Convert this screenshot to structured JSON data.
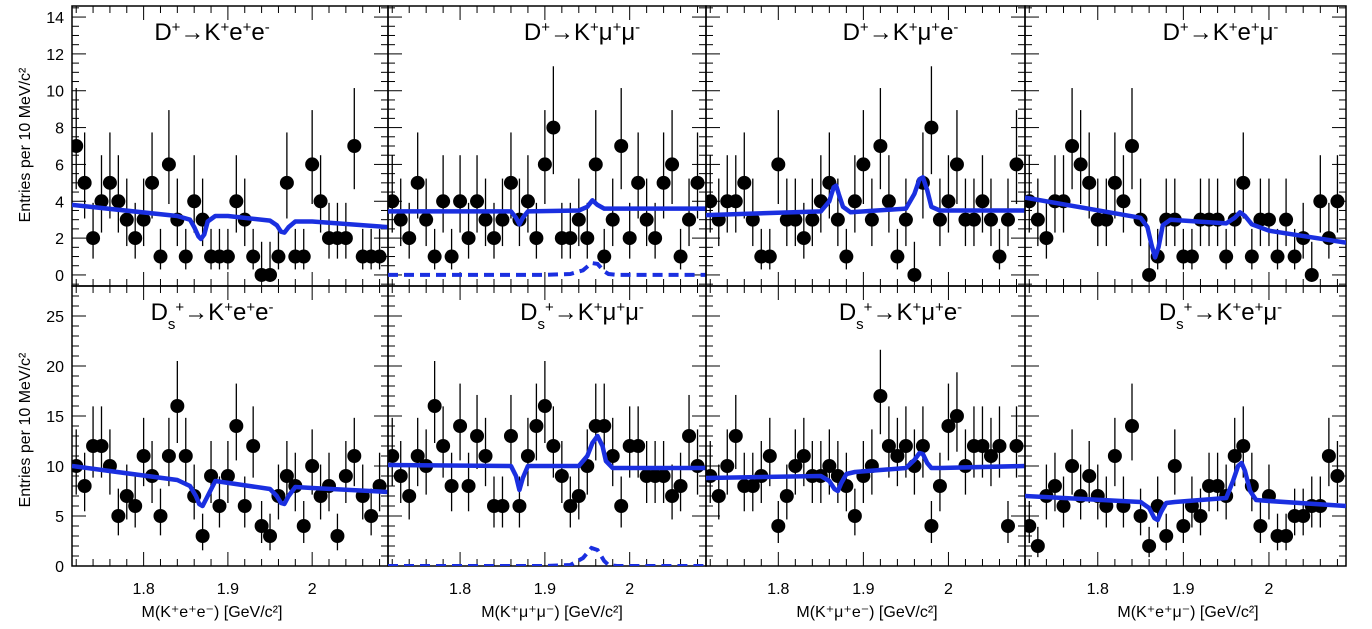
{
  "figure": {
    "ylabel": "Entries per 10 MeV/c²",
    "xlabels": [
      "M(K⁺e⁺e⁻) [GeV/c²]",
      "M(K⁺μ⁺μ⁻) [GeV/c²]",
      "M(K⁺μ⁺e⁻) [GeV/c²]",
      "M(K⁺e⁺μ⁻) [GeV/c²]"
    ],
    "xticks": [
      1.8,
      1.9,
      2.0
    ],
    "xtick_labels": [
      "1.8",
      "1.9",
      "2"
    ],
    "xlim": [
      1.715,
      2.09
    ],
    "rows": [
      {
        "ylim": [
          -0.6,
          14.6
        ],
        "yticks": [
          0,
          2,
          4,
          6,
          8,
          10,
          12,
          14
        ]
      },
      {
        "ylim": [
          0,
          28
        ],
        "yticks": [
          0,
          5,
          10,
          15,
          20,
          25
        ]
      }
    ],
    "colors": {
      "fit": "#1a2fe0",
      "data": "#000000"
    }
  },
  "chart_data": [
    {
      "type": "scatter",
      "title": "D⁺→K⁺e⁺e⁻",
      "row": 0,
      "col": 0,
      "x": [
        1.72,
        1.73,
        1.74,
        1.75,
        1.76,
        1.77,
        1.78,
        1.79,
        1.8,
        1.81,
        1.82,
        1.83,
        1.84,
        1.85,
        1.86,
        1.87,
        1.88,
        1.89,
        1.9,
        1.91,
        1.92,
        1.93,
        1.94,
        1.95,
        1.96,
        1.97,
        1.98,
        1.99,
        2.0,
        2.01,
        2.02,
        2.03,
        2.04,
        2.05,
        2.06,
        2.07,
        2.08
      ],
      "y": [
        7,
        5,
        2,
        4,
        5,
        4,
        3,
        2,
        3,
        5,
        1,
        6,
        3,
        1,
        4,
        3,
        1,
        1,
        1,
        4,
        3,
        1,
        0,
        0,
        1,
        5,
        1,
        1,
        6,
        4,
        2,
        2,
        2,
        7,
        1,
        1,
        1
      ],
      "fit": {
        "x": [
          1.715,
          1.84,
          1.855,
          1.86,
          1.865,
          1.868,
          1.872,
          1.876,
          1.885,
          1.9,
          1.95,
          1.958,
          1.963,
          1.967,
          1.972,
          1.98,
          2.0,
          2.09
        ],
        "y": [
          3.8,
          3.2,
          3.0,
          2.6,
          2.1,
          1.95,
          2.2,
          2.9,
          3.2,
          3.2,
          2.95,
          2.7,
          2.35,
          2.3,
          2.6,
          2.9,
          2.9,
          2.6
        ]
      }
    },
    {
      "type": "scatter",
      "title": "D⁺→K⁺μ⁺μ⁻",
      "row": 0,
      "col": 1,
      "x": [
        1.72,
        1.73,
        1.74,
        1.75,
        1.76,
        1.77,
        1.78,
        1.79,
        1.8,
        1.81,
        1.82,
        1.83,
        1.84,
        1.85,
        1.86,
        1.87,
        1.88,
        1.89,
        1.9,
        1.91,
        1.92,
        1.93,
        1.94,
        1.95,
        1.96,
        1.97,
        1.98,
        1.99,
        2.0,
        2.01,
        2.02,
        2.03,
        2.04,
        2.05,
        2.06,
        2.07,
        2.08
      ],
      "y": [
        4,
        3,
        2,
        5,
        3,
        1,
        4,
        1,
        4,
        2,
        4,
        3,
        2,
        3,
        5,
        3,
        4,
        2,
        6,
        8,
        2,
        2,
        3,
        2,
        6,
        1,
        3,
        7,
        2,
        5,
        3,
        2,
        5,
        6,
        1,
        3,
        5
      ],
      "fit": {
        "x": [
          1.715,
          1.86,
          1.866,
          1.87,
          1.874,
          1.88,
          1.94,
          1.95,
          1.956,
          1.962,
          1.97,
          2.0,
          2.09
        ],
        "y": [
          3.45,
          3.45,
          3.1,
          2.75,
          3.1,
          3.45,
          3.5,
          3.7,
          4.05,
          3.8,
          3.6,
          3.6,
          3.6
        ]
      },
      "fit_dashed": {
        "x": [
          1.715,
          1.9,
          1.93,
          1.945,
          1.955,
          1.962,
          1.97,
          1.975,
          1.985,
          2.09
        ],
        "y": [
          0,
          0,
          0.05,
          0.25,
          0.65,
          0.6,
          0.2,
          0.05,
          0,
          0
        ]
      }
    },
    {
      "type": "scatter",
      "title": "D⁺→K⁺μ⁺e⁻",
      "row": 0,
      "col": 2,
      "x": [
        1.72,
        1.73,
        1.74,
        1.75,
        1.76,
        1.77,
        1.78,
        1.79,
        1.8,
        1.81,
        1.82,
        1.83,
        1.84,
        1.85,
        1.86,
        1.87,
        1.88,
        1.89,
        1.9,
        1.91,
        1.92,
        1.93,
        1.94,
        1.95,
        1.96,
        1.97,
        1.98,
        1.99,
        2.0,
        2.01,
        2.02,
        2.03,
        2.04,
        2.05,
        2.06,
        2.07,
        2.08
      ],
      "y": [
        4,
        3,
        4,
        4,
        5,
        3,
        1,
        1,
        6,
        3,
        3,
        2,
        3,
        4,
        5,
        3,
        1,
        4,
        6,
        3,
        7,
        4,
        1,
        3,
        0,
        5,
        8,
        3,
        4,
        6,
        3,
        3,
        4,
        3,
        1,
        3,
        6
      ],
      "fit": {
        "x": [
          1.715,
          1.85,
          1.86,
          1.865,
          1.868,
          1.871,
          1.876,
          1.885,
          1.95,
          1.96,
          1.966,
          1.97,
          1.975,
          1.98,
          1.99,
          2.09
        ],
        "y": [
          3.25,
          3.45,
          4.0,
          4.75,
          4.85,
          4.4,
          3.7,
          3.4,
          3.6,
          4.4,
          5.2,
          5.3,
          4.6,
          3.7,
          3.5,
          3.5
        ]
      }
    },
    {
      "type": "scatter",
      "title": "D⁺→K⁺e⁺μ⁻",
      "row": 0,
      "col": 3,
      "x": [
        1.72,
        1.73,
        1.74,
        1.75,
        1.76,
        1.77,
        1.78,
        1.79,
        1.8,
        1.81,
        1.82,
        1.83,
        1.84,
        1.85,
        1.86,
        1.87,
        1.88,
        1.89,
        1.9,
        1.91,
        1.92,
        1.93,
        1.94,
        1.95,
        1.96,
        1.97,
        1.98,
        1.99,
        2.0,
        2.01,
        2.02,
        2.03,
        2.04,
        2.05,
        2.06,
        2.07,
        2.08
      ],
      "y": [
        4,
        3,
        2,
        4,
        4,
        7,
        6,
        5,
        3,
        3,
        5,
        4,
        7,
        3,
        0,
        1,
        3,
        3,
        1,
        1,
        3,
        3,
        3,
        1,
        3,
        5,
        1,
        3,
        3,
        1,
        3,
        1,
        2,
        0,
        4,
        2,
        4
      ],
      "fit": {
        "x": [
          1.715,
          1.85,
          1.858,
          1.863,
          1.867,
          1.871,
          1.876,
          1.885,
          1.95,
          1.96,
          1.966,
          1.972,
          1.98,
          2.0,
          2.09
        ],
        "y": [
          4.2,
          3.1,
          2.6,
          1.6,
          0.95,
          1.5,
          2.7,
          3.0,
          2.8,
          3.1,
          3.4,
          3.2,
          2.75,
          2.4,
          1.75
        ]
      }
    },
    {
      "type": "scatter",
      "title": "Dₛ⁺→K⁺e⁺e⁻",
      "row": 1,
      "col": 0,
      "x": [
        1.72,
        1.73,
        1.74,
        1.75,
        1.76,
        1.77,
        1.78,
        1.79,
        1.8,
        1.81,
        1.82,
        1.83,
        1.84,
        1.85,
        1.86,
        1.87,
        1.88,
        1.89,
        1.9,
        1.91,
        1.92,
        1.93,
        1.94,
        1.95,
        1.96,
        1.97,
        1.98,
        1.99,
        2.0,
        2.01,
        2.02,
        2.03,
        2.04,
        2.05,
        2.06,
        2.07,
        2.08
      ],
      "y": [
        10,
        8,
        12,
        12,
        10,
        5,
        7,
        6,
        11,
        9,
        5,
        11,
        16,
        11,
        7,
        3,
        9,
        6,
        9,
        14,
        6,
        12,
        4,
        3,
        7,
        9,
        8,
        4,
        10,
        7,
        8,
        3,
        9,
        11,
        7,
        5,
        8
      ],
      "fit": {
        "x": [
          1.715,
          1.84,
          1.855,
          1.862,
          1.866,
          1.87,
          1.876,
          1.885,
          1.95,
          1.958,
          1.963,
          1.967,
          1.972,
          1.98,
          2.0,
          2.09
        ],
        "y": [
          10.0,
          8.6,
          8.0,
          7.0,
          6.2,
          6.0,
          7.0,
          8.5,
          7.7,
          7.0,
          6.3,
          6.2,
          7.0,
          7.9,
          7.8,
          7.4
        ]
      }
    },
    {
      "type": "scatter",
      "title": "Dₛ⁺→K⁺μ⁺μ⁻",
      "row": 1,
      "col": 1,
      "x": [
        1.72,
        1.73,
        1.74,
        1.75,
        1.76,
        1.77,
        1.78,
        1.79,
        1.8,
        1.81,
        1.82,
        1.83,
        1.84,
        1.85,
        1.86,
        1.87,
        1.88,
        1.89,
        1.9,
        1.91,
        1.92,
        1.93,
        1.94,
        1.95,
        1.96,
        1.97,
        1.98,
        1.99,
        2.0,
        2.01,
        2.02,
        2.03,
        2.04,
        2.05,
        2.06,
        2.07,
        2.08
      ],
      "y": [
        11,
        9,
        7,
        11,
        10,
        16,
        12,
        8,
        14,
        8,
        13,
        11,
        6,
        6,
        13,
        6,
        11,
        14,
        16,
        12,
        9,
        6,
        7,
        10,
        14,
        14,
        11,
        6,
        12,
        12,
        9,
        9,
        9,
        7,
        8,
        13,
        10
      ],
      "fit": {
        "x": [
          1.715,
          1.86,
          1.866,
          1.87,
          1.874,
          1.88,
          1.94,
          1.95,
          1.956,
          1.962,
          1.968,
          1.972,
          1.98,
          1.99,
          2.09
        ],
        "y": [
          10.1,
          10.0,
          9.0,
          7.6,
          8.8,
          10.0,
          10.0,
          11.0,
          12.3,
          13.0,
          12.0,
          10.5,
          9.8,
          9.8,
          9.8
        ]
      },
      "fit_dashed": {
        "x": [
          1.715,
          1.9,
          1.93,
          1.945,
          1.955,
          1.962,
          1.97,
          1.975,
          1.985,
          2.09
        ],
        "y": [
          0,
          0,
          0.1,
          0.8,
          1.8,
          1.6,
          0.5,
          0.1,
          0,
          0
        ]
      }
    },
    {
      "type": "scatter",
      "title": "Dₛ⁺→K⁺μ⁺e⁻",
      "row": 1,
      "col": 2,
      "x": [
        1.72,
        1.73,
        1.74,
        1.75,
        1.76,
        1.77,
        1.78,
        1.79,
        1.8,
        1.81,
        1.82,
        1.83,
        1.84,
        1.85,
        1.86,
        1.87,
        1.88,
        1.89,
        1.9,
        1.91,
        1.92,
        1.93,
        1.94,
        1.95,
        1.96,
        1.97,
        1.98,
        1.99,
        2.0,
        2.01,
        2.02,
        2.03,
        2.04,
        2.05,
        2.06,
        2.07,
        2.08
      ],
      "y": [
        9,
        7,
        10,
        13,
        8,
        8,
        9,
        11,
        4,
        7,
        10,
        11,
        9,
        9,
        10,
        9,
        8,
        5,
        9,
        10,
        17,
        12,
        11,
        12,
        10,
        12,
        4,
        8,
        14,
        15,
        10,
        12,
        12,
        11,
        12,
        4,
        12
      ],
      "fit": {
        "x": [
          1.715,
          1.85,
          1.86,
          1.866,
          1.87,
          1.874,
          1.88,
          1.89,
          1.95,
          1.96,
          1.966,
          1.97,
          1.975,
          1.98,
          1.99,
          2.09
        ],
        "y": [
          8.8,
          9.0,
          8.5,
          7.7,
          7.5,
          8.3,
          9.2,
          9.4,
          9.8,
          10.6,
          11.3,
          11.2,
          10.3,
          9.8,
          9.8,
          10.0
        ]
      }
    },
    {
      "type": "scatter",
      "title": "Dₛ⁺→K⁺e⁺μ⁻",
      "row": 1,
      "col": 3,
      "x": [
        1.72,
        1.73,
        1.74,
        1.75,
        1.76,
        1.77,
        1.78,
        1.79,
        1.8,
        1.81,
        1.82,
        1.83,
        1.84,
        1.85,
        1.86,
        1.87,
        1.88,
        1.89,
        1.9,
        1.91,
        1.92,
        1.93,
        1.94,
        1.95,
        1.96,
        1.97,
        1.98,
        1.99,
        2.0,
        2.01,
        2.02,
        2.03,
        2.04,
        2.05,
        2.06,
        2.07,
        2.08
      ],
      "y": [
        4,
        2,
        7,
        8,
        6,
        10,
        7,
        9,
        7,
        6,
        11,
        6,
        14,
        5,
        2,
        6,
        3,
        10,
        4,
        6,
        5,
        8,
        8,
        7,
        11,
        12,
        8,
        4,
        7,
        3,
        3,
        5,
        5,
        6,
        6,
        11,
        9
      ],
      "fit": {
        "x": [
          1.715,
          1.85,
          1.86,
          1.866,
          1.87,
          1.874,
          1.88,
          1.89,
          1.95,
          1.958,
          1.964,
          1.968,
          1.972,
          1.978,
          1.985,
          2.0,
          2.09
        ],
        "y": [
          7.0,
          6.4,
          5.8,
          4.8,
          4.6,
          5.4,
          6.3,
          6.4,
          6.8,
          8.5,
          10.0,
          10.3,
          9.5,
          7.5,
          6.6,
          6.5,
          6.0
        ]
      }
    }
  ]
}
